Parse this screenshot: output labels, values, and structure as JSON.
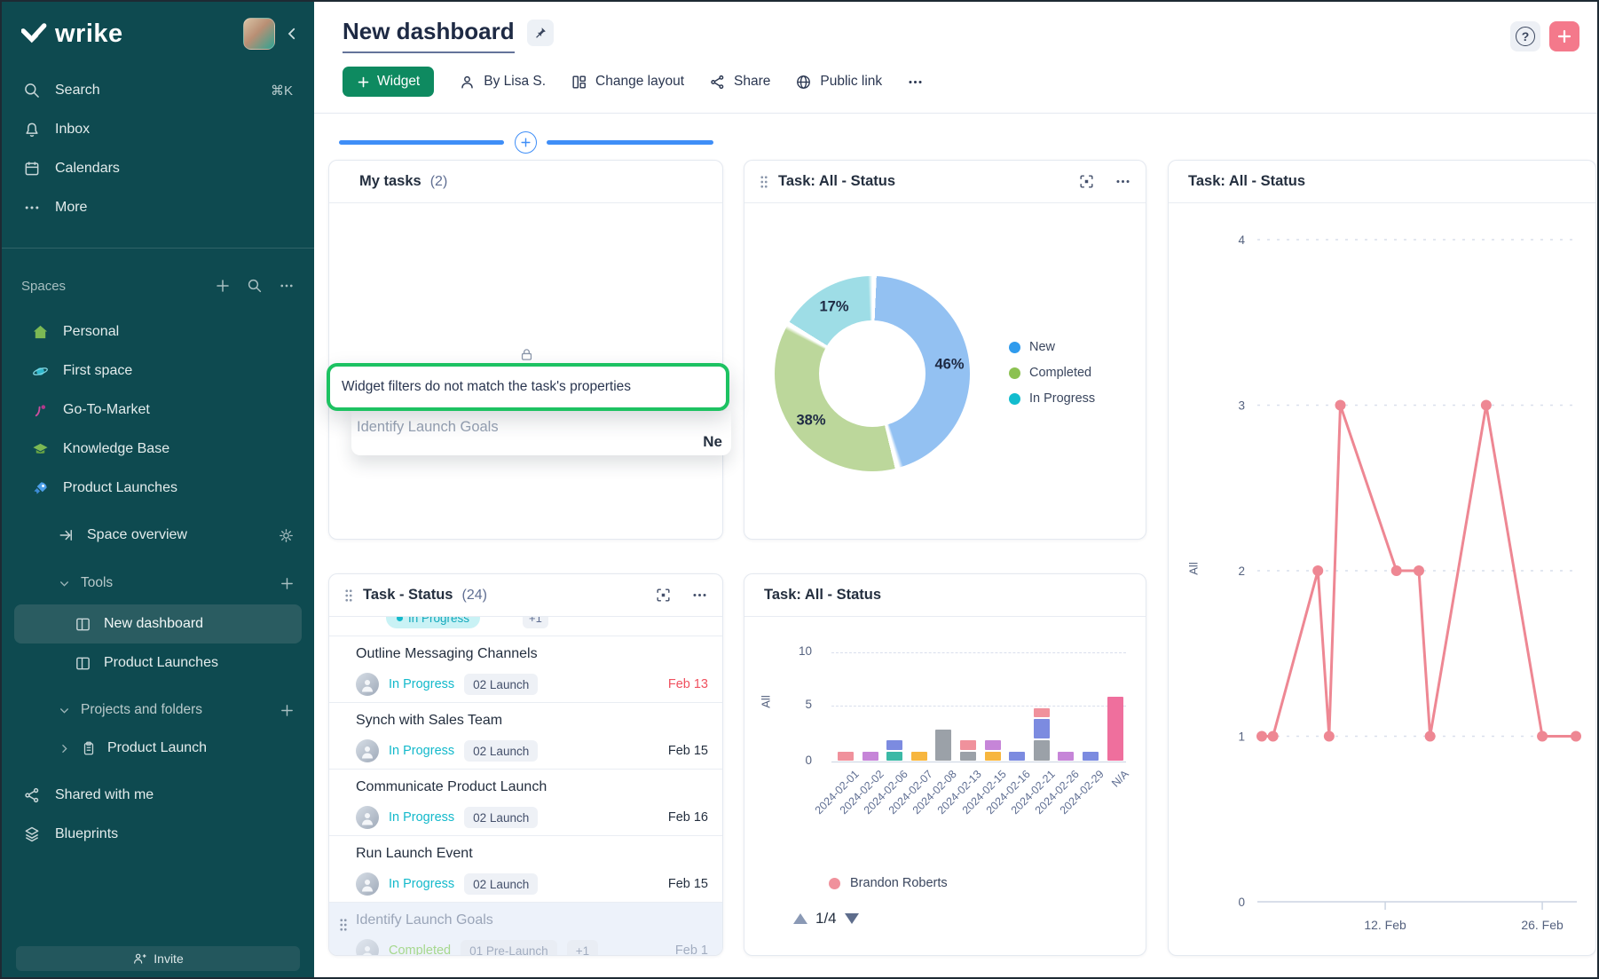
{
  "colors": {
    "sidebar_bg": "#0E4A50",
    "sidebar_selected": "#2A5C61",
    "accent_green": "#0E8A60",
    "tooltip_green": "#1DC262",
    "accent_coral": "#F4798B",
    "accent_blue": "#3F8EF7",
    "status_teal": "#13B9CB",
    "status_completed": "#A6D88E",
    "overdue_red": "#F0515F",
    "line_salmon": "#EE8793"
  },
  "sidebar": {
    "brand": "wrike",
    "nav": [
      {
        "label": "Search",
        "shortcut": "⌘K"
      },
      {
        "label": "Inbox"
      },
      {
        "label": "Calendars"
      },
      {
        "label": "More"
      }
    ],
    "spaces_title": "Spaces",
    "spaces": [
      {
        "label": "Personal"
      },
      {
        "label": "First space"
      },
      {
        "label": "Go-To-Market"
      },
      {
        "label": "Knowledge Base"
      },
      {
        "label": "Product Launches"
      }
    ],
    "space_overview": "Space overview",
    "tools_label": "Tools",
    "tools": [
      {
        "label": "New dashboard",
        "selected": true
      },
      {
        "label": "Product Launches",
        "selected": false
      }
    ],
    "projects_label": "Projects and folders",
    "projects": [
      {
        "label": "Product Launch"
      }
    ],
    "shared_label": "Shared with me",
    "blueprints_label": "Blueprints",
    "invite_label": "Invite"
  },
  "header": {
    "title": "New dashboard",
    "widget_button": "Widget",
    "author": "By Lisa S.",
    "change_layout": "Change layout",
    "share": "Share",
    "public_link": "Public link",
    "help": "?"
  },
  "widgets": {
    "my_tasks": {
      "title": "My tasks",
      "count": "(2)",
      "tooltip": "Widget filters do not match the task's properties",
      "task_title": "Identify Launch Goals",
      "clipped_text": "Ne"
    },
    "donut": {
      "title": "Task: All - Status",
      "chart_data": {
        "type": "pie",
        "donut": true,
        "legend_position": "right",
        "slices": [
          {
            "label": "New",
            "value": 46,
            "display": "46%",
            "color": "#93C1F2",
            "legend_color": "#2F9BED"
          },
          {
            "label": "Completed",
            "value": 38,
            "display": "38%",
            "color": "#BCD79B",
            "legend_color": "#8CC152"
          },
          {
            "label": "In Progress",
            "value": 17,
            "display": "17%",
            "color": "#9EDDE6",
            "legend_color": "#12BCCE"
          }
        ]
      }
    },
    "task_list": {
      "title": "Task - Status",
      "count": "(24)",
      "scroll_fragment": {
        "status": "In Progress",
        "extra": "+1"
      },
      "rows": [
        {
          "title": "Outline Messaging Channels",
          "status": "In Progress",
          "tag": "02 Launch",
          "date": "Feb 13",
          "overdue": true,
          "dimmed": false
        },
        {
          "title": "Synch with Sales Team",
          "status": "In Progress",
          "tag": "02 Launch",
          "date": "Feb 15",
          "overdue": false,
          "dimmed": false
        },
        {
          "title": "Communicate Product Launch",
          "status": "In Progress",
          "tag": "02 Launch",
          "date": "Feb 16",
          "overdue": false,
          "dimmed": false
        },
        {
          "title": "Run Launch Event",
          "status": "In Progress",
          "tag": "02 Launch",
          "date": "Feb 15",
          "overdue": false,
          "dimmed": false
        },
        {
          "title": "Identify Launch Goals",
          "status": "Completed",
          "tag": "01 Pre-Launch",
          "extra": "+1",
          "date": "Feb 1",
          "overdue": false,
          "dimmed": true
        }
      ]
    },
    "bar": {
      "title": "Task: All - Status",
      "legend": "Brandon Roberts",
      "pagination": "1/4",
      "chart_data": {
        "type": "bar",
        "stacked": true,
        "ylabel": "All",
        "yticks": [
          0,
          5,
          10
        ],
        "ylim": [
          0,
          10
        ],
        "categories": [
          "2024-02-01",
          "2024-02-02",
          "2024-02-06",
          "2024-02-07",
          "2024-02-08",
          "2024-02-13",
          "2024-02-15",
          "2024-02-16",
          "2024-02-21",
          "2024-02-26",
          "2024-02-29",
          "N/A"
        ],
        "colors": {
          "salmon": "#F0919C",
          "violet": "#C685D8",
          "teal": "#3BB9A6",
          "indigo": "#7C8BE0",
          "amber": "#F7B63E",
          "gray": "#9BA1A8",
          "pink": "#EF6F9D"
        },
        "series": [
          {
            "category": "2024-02-01",
            "segments": [
              {
                "color": "salmon",
                "value": 1
              }
            ]
          },
          {
            "category": "2024-02-02",
            "segments": [
              {
                "color": "violet",
                "value": 1
              }
            ]
          },
          {
            "category": "2024-02-06",
            "segments": [
              {
                "color": "teal",
                "value": 1
              },
              {
                "color": "indigo",
                "value": 1
              }
            ]
          },
          {
            "category": "2024-02-07",
            "segments": [
              {
                "color": "amber",
                "value": 1
              }
            ]
          },
          {
            "category": "2024-02-08",
            "segments": [
              {
                "color": "gray",
                "value": 3
              }
            ]
          },
          {
            "category": "2024-02-13",
            "segments": [
              {
                "color": "gray",
                "value": 1
              },
              {
                "color": "salmon",
                "value": 1
              }
            ]
          },
          {
            "category": "2024-02-15",
            "segments": [
              {
                "color": "amber",
                "value": 1
              },
              {
                "color": "violet",
                "value": 1
              }
            ]
          },
          {
            "category": "2024-02-16",
            "segments": [
              {
                "color": "indigo",
                "value": 1
              }
            ]
          },
          {
            "category": "2024-02-21",
            "segments": [
              {
                "color": "gray",
                "value": 2
              },
              {
                "color": "indigo",
                "value": 2
              },
              {
                "color": "salmon",
                "value": 1
              }
            ]
          },
          {
            "category": "2024-02-26",
            "segments": [
              {
                "color": "violet",
                "value": 1
              }
            ]
          },
          {
            "category": "2024-02-29",
            "segments": [
              {
                "color": "indigo",
                "value": 1
              }
            ]
          },
          {
            "category": "N/A",
            "segments": [
              {
                "color": "pink",
                "value": 6
              }
            ]
          }
        ]
      }
    },
    "line": {
      "title": "Task: All - Status",
      "chart_data": {
        "type": "line",
        "ylabel": "All",
        "yticks": [
          0,
          1,
          2,
          3,
          4
        ],
        "ylim": [
          0,
          4
        ],
        "color": "#EE8793",
        "x_ticks": [
          {
            "label": "12. Feb",
            "day": 11
          },
          {
            "label": "26. Feb",
            "day": 25
          }
        ],
        "points": [
          {
            "day": 0,
            "value": 1
          },
          {
            "day": 1,
            "value": 1
          },
          {
            "day": 5,
            "value": 2
          },
          {
            "day": 6,
            "value": 1
          },
          {
            "day": 7,
            "value": 3
          },
          {
            "day": 12,
            "value": 2
          },
          {
            "day": 14,
            "value": 2
          },
          {
            "day": 15,
            "value": 1
          },
          {
            "day": 20,
            "value": 3
          },
          {
            "day": 25,
            "value": 1
          },
          {
            "day": 28,
            "value": 1
          }
        ]
      }
    }
  }
}
